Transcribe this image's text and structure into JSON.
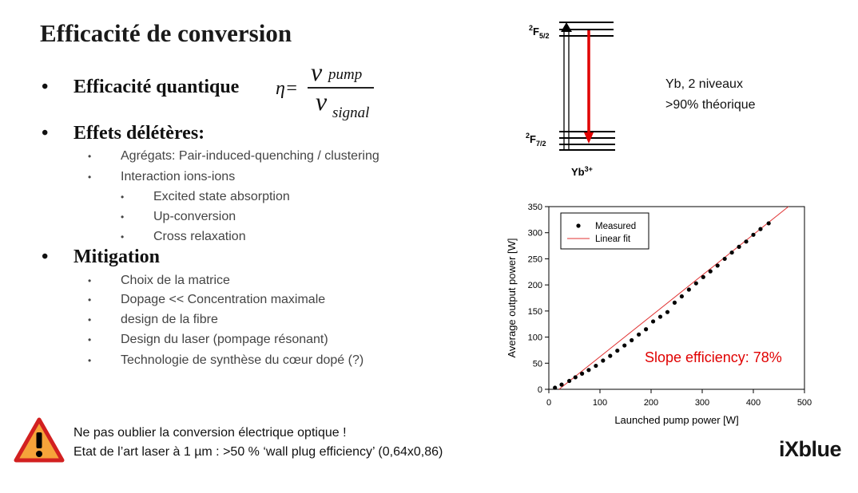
{
  "title": "Efficacité de conversion",
  "sections": [
    {
      "label": "Efficacité quantique"
    },
    {
      "label": "Effets délétères:",
      "items": [
        {
          "text": "Agrégats: Pair-induced-quenching / clustering"
        },
        {
          "text": "Interaction ions-ions",
          "subitems": [
            "Excited state absorption",
            "Up-conversion",
            "Cross relaxation"
          ]
        }
      ]
    },
    {
      "label": "Mitigation",
      "items": [
        "Choix de la matrice",
        "Dopage << Concentration maximale",
        "design de la fibre",
        "Design du laser (pompage résonant)",
        "Technologie de synthèse du cœur dopé (?)"
      ]
    }
  ],
  "formula": {
    "lhs": "η=",
    "numerator_symbol": "ν",
    "numerator_sub": "pump",
    "denominator_symbol": "ν",
    "denominator_sub": "signal"
  },
  "energy_diagram": {
    "upper_level": "2F5/2",
    "lower_level": "2F7/2",
    "ion": "Yb3+",
    "arrow_color": "#e00000"
  },
  "yb_note": {
    "line1": "Yb, 2 niveaux",
    "line2": ">90% théorique"
  },
  "warning": {
    "line1": "Ne pas oublier la conversion électrique optique !",
    "line2": "Etat de l’art laser à 1 µm : >50 % ‘wall plug efficiency’ (0,64x0,86)"
  },
  "logo": "iXblue",
  "chart_data": {
    "type": "scatter",
    "xlabel": "Launched pump power [W]",
    "ylabel": "Average output power [W]",
    "xlim": [
      0,
      500
    ],
    "ylim": [
      0,
      350
    ],
    "xticks": [
      0,
      100,
      200,
      300,
      400,
      500
    ],
    "yticks": [
      0,
      50,
      100,
      150,
      200,
      250,
      300,
      350
    ],
    "grid": false,
    "legend_position": "top-left",
    "series": [
      {
        "name": "Measured",
        "kind": "points",
        "color": "#000000",
        "points": [
          [
            12,
            3
          ],
          [
            25,
            9
          ],
          [
            40,
            16
          ],
          [
            52,
            23
          ],
          [
            65,
            30
          ],
          [
            78,
            37
          ],
          [
            92,
            45
          ],
          [
            106,
            55
          ],
          [
            120,
            64
          ],
          [
            134,
            74
          ],
          [
            148,
            84
          ],
          [
            162,
            94
          ],
          [
            176,
            105
          ],
          [
            190,
            115
          ],
          [
            204,
            130
          ],
          [
            218,
            139
          ],
          [
            232,
            148
          ],
          [
            246,
            166
          ],
          [
            260,
            178
          ],
          [
            274,
            191
          ],
          [
            288,
            203
          ],
          [
            302,
            215
          ],
          [
            316,
            226
          ],
          [
            330,
            237
          ],
          [
            344,
            250
          ],
          [
            358,
            262
          ],
          [
            372,
            273
          ],
          [
            386,
            283
          ],
          [
            400,
            296
          ],
          [
            414,
            307
          ],
          [
            430,
            318
          ]
        ]
      },
      {
        "name": "Linear fit",
        "kind": "line",
        "color": "#e03030",
        "x": [
          20,
          475
        ],
        "y": [
          0,
          355
        ]
      }
    ],
    "annotation": {
      "text": "Slope efficiency: 78%",
      "color": "#e00000"
    }
  }
}
